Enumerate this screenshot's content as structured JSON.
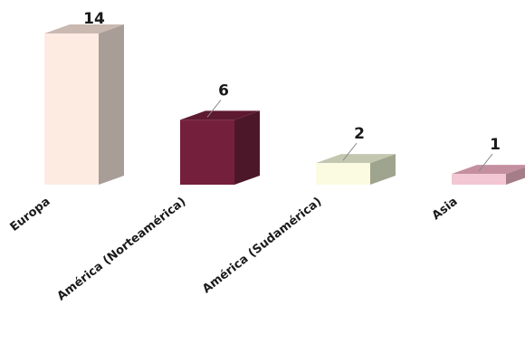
{
  "chart_data": {
    "type": "bar",
    "categories": [
      "Europa",
      "América (Norteamérica)",
      "América (Sudamérica)",
      "Asia"
    ],
    "values": [
      14,
      6,
      2,
      1
    ],
    "colors": [
      {
        "front": "#fdebe2",
        "side": "#a89d97",
        "top": "#c9b9b1"
      },
      {
        "front": "#74203c",
        "side": "#4d172a",
        "top": "#5e1a31"
      },
      {
        "front": "#fbfbe2",
        "side": "#9fa48e",
        "top": "#c4c7b0"
      },
      {
        "front": "#f3c7d3",
        "side": "#a47d89",
        "top": "#c48f9f"
      }
    ],
    "title": "",
    "xlabel": "",
    "ylabel": "",
    "ylim": [
      0,
      14
    ],
    "grid": false,
    "legend": "none",
    "style": "3d-column"
  }
}
